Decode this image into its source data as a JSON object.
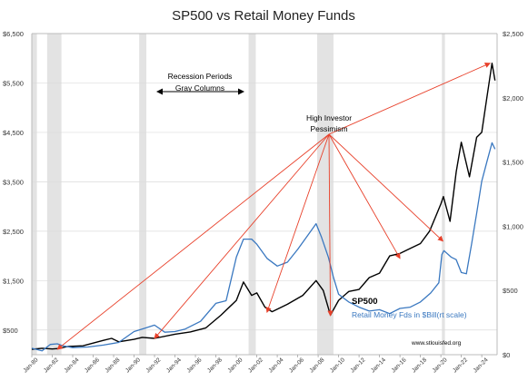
{
  "chart_data": {
    "type": "line",
    "title": "SP500 vs Retail Money Funds",
    "left_axis": {
      "ticks": [
        500,
        1500,
        2500,
        3500,
        4500,
        5500,
        6500
      ],
      "tick_labels": [
        "$500",
        "$1,500",
        "$2,500",
        "$3,500",
        "$4,500",
        "$5,500",
        "$6,500"
      ],
      "ylim": [
        0,
        6500
      ]
    },
    "right_axis": {
      "ticks": [
        0,
        500,
        1000,
        1500,
        2000,
        2500
      ],
      "tick_labels": [
        "$0",
        "$500",
        "$1,000",
        "$1,500",
        "$2,000",
        "$2,500"
      ],
      "ylim": [
        0,
        2500
      ]
    },
    "x_axis": {
      "xlim": [
        1980.0,
        2025.5
      ],
      "ticks": [
        1980,
        1982,
        1984,
        1986,
        1988,
        1990,
        1992,
        1994,
        1996,
        1998,
        2000,
        2002,
        2004,
        2006,
        2008,
        2010,
        2012,
        2014,
        2016,
        2018,
        2020,
        2022,
        2024
      ],
      "tick_labels": [
        "Jan-80",
        "Jan-82",
        "Jan-84",
        "Jan-86",
        "Jan-88",
        "Jan-90",
        "Jan-92",
        "Jan-94",
        "Jan-96",
        "Jan-98",
        "Jan-00",
        "Jan-02",
        "Jan-04",
        "Jan-06",
        "Jan-08",
        "Jan-10",
        "Jan-12",
        "Jan-14",
        "Jan-16",
        "Jan-18",
        "Jan-20",
        "Jan-22",
        "Jan-24"
      ]
    },
    "recessions": [
      [
        1980.0,
        1980.5
      ],
      [
        1981.5,
        1982.9
      ],
      [
        1990.5,
        1991.2
      ],
      [
        2001.2,
        2001.9
      ],
      [
        2007.9,
        2009.5
      ],
      [
        2020.1,
        2020.4
      ]
    ],
    "series": [
      {
        "name": "SP500",
        "axis": "left",
        "color": "#000000",
        "x": [
          1980.0,
          1981.0,
          1982.0,
          1982.6,
          1983.5,
          1985.0,
          1987.0,
          1987.8,
          1988.5,
          1990.0,
          1990.8,
          1992.0,
          1994.0,
          1995.5,
          1997.0,
          1998.5,
          2000.0,
          2000.7,
          2001.5,
          2002.0,
          2002.8,
          2003.5,
          2005.0,
          2006.5,
          2007.8,
          2008.5,
          2009.2,
          2010.0,
          2011.0,
          2012.0,
          2013.0,
          2014.0,
          2015.0,
          2016.0,
          2017.0,
          2018.0,
          2018.9,
          2019.5,
          2020.0,
          2020.25,
          2020.9,
          2021.5,
          2022.0,
          2022.8,
          2023.5,
          2024.0,
          2024.5,
          2025.0,
          2025.3
        ],
        "y": [
          110,
          130,
          115,
          125,
          165,
          180,
          290,
          330,
          260,
          310,
          350,
          330,
          415,
          460,
          540,
          800,
          1100,
          1470,
          1200,
          1250,
          960,
          870,
          1020,
          1200,
          1500,
          1300,
          800,
          1100,
          1280,
          1320,
          1560,
          1650,
          2000,
          2050,
          2150,
          2250,
          2500,
          2800,
          3050,
          3200,
          2700,
          3700,
          4300,
          3600,
          4400,
          4500,
          5200,
          5900,
          5550
        ]
      },
      {
        "name": "Retail Money Fds in $Bill(rt scale)",
        "axis": "right",
        "color": "#3a78c0",
        "x": [
          1980.0,
          1981.0,
          1981.8,
          1982.5,
          1983.0,
          1984.0,
          1985.5,
          1987.0,
          1988.5,
          1990.0,
          1991.0,
          1992.0,
          1993.0,
          1994.0,
          1995.0,
          1996.5,
          1998.0,
          1999.0,
          2000.0,
          2000.7,
          2001.5,
          2002.0,
          2003.0,
          2004.0,
          2005.0,
          2006.0,
          2007.0,
          2007.8,
          2008.3,
          2009.0,
          2009.5,
          2010.0,
          2011.0,
          2012.0,
          2013.0,
          2014.0,
          2015.0,
          2016.0,
          2017.0,
          2018.0,
          2019.0,
          2019.8,
          2020.1,
          2020.3,
          2021.0,
          2021.5,
          2022.0,
          2022.5,
          2023.0,
          2023.5,
          2024.0,
          2024.5,
          2025.0,
          2025.3
        ],
        "y": [
          50,
          30,
          80,
          85,
          70,
          55,
          60,
          75,
          95,
          180,
          205,
          230,
          175,
          180,
          200,
          260,
          400,
          420,
          760,
          900,
          900,
          860,
          750,
          690,
          720,
          820,
          930,
          1020,
          920,
          760,
          600,
          470,
          410,
          370,
          340,
          350,
          320,
          360,
          370,
          410,
          480,
          560,
          780,
          810,
          760,
          740,
          640,
          630,
          860,
          1100,
          1350,
          1500,
          1650,
          1600
        ]
      }
    ],
    "annotations": {
      "recession_label_line1": "Recession Periods",
      "recession_label_line2": "Gray Columns",
      "pessimism_line1": "High Investor",
      "pessimism_line2": "Pessimism",
      "sp500_label": "SP500",
      "money_label": "Retail Money Fds in $Bill(rt scale)",
      "source": "www.stlouisfed.org",
      "arrow_targets": [
        [
          1982.5,
          110
        ],
        [
          1992.0,
          330
        ],
        [
          2003.0,
          860
        ],
        [
          2009.2,
          790
        ],
        [
          2016.0,
          1950
        ],
        [
          2020.2,
          2300
        ],
        [
          2024.8,
          5900
        ]
      ]
    },
    "colors": {
      "sp500": "#000000",
      "money": "#3a78c0",
      "arrow": "#e8402a",
      "recession": "#e3e3e3",
      "grid": "#dcdcdc"
    }
  }
}
